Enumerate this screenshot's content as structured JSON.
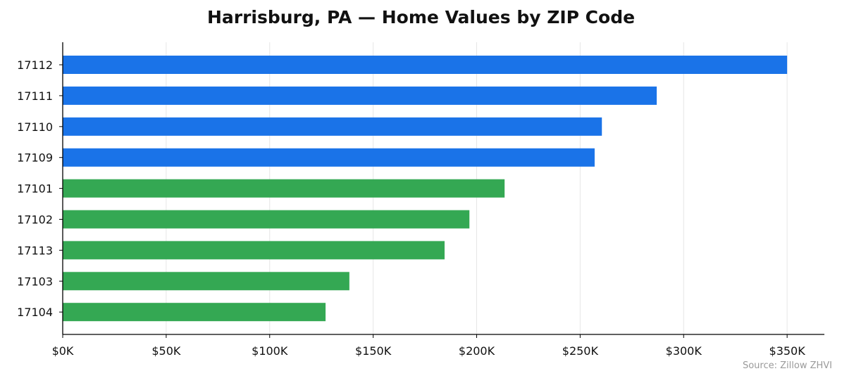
{
  "chart_data": {
    "type": "bar",
    "orientation": "horizontal",
    "title": "Harrisburg, PA — Home Values by ZIP Code",
    "xlabel": "",
    "ylabel": "",
    "categories": [
      "17112",
      "17111",
      "17110",
      "17109",
      "17101",
      "17102",
      "17113",
      "17103",
      "17104"
    ],
    "values": [
      350000,
      287000,
      260500,
      257000,
      213500,
      196500,
      184500,
      138500,
      127000
    ],
    "bar_colors": [
      "#1a73e8",
      "#1a73e8",
      "#1a73e8",
      "#1a73e8",
      "#34a853",
      "#34a853",
      "#34a853",
      "#34a853",
      "#34a853"
    ],
    "xlim": [
      0,
      368000
    ],
    "x_ticks": [
      0,
      50000,
      100000,
      150000,
      200000,
      250000,
      300000,
      350000
    ],
    "x_tick_labels": [
      "$0K",
      "$50K",
      "$100K",
      "$150K",
      "$200K",
      "$250K",
      "$300K",
      "$350K"
    ],
    "grid": "vertical",
    "legend": "none"
  },
  "source_note": "Source: Zillow ZHVI"
}
